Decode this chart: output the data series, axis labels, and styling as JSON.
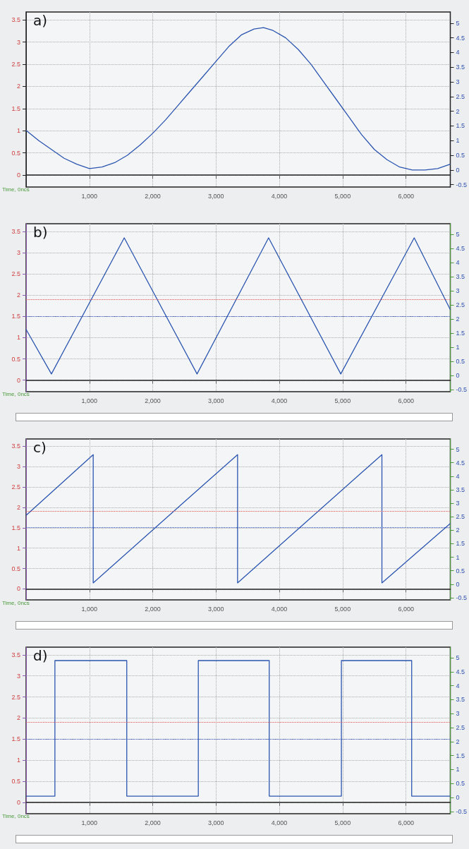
{
  "chart_data": [
    {
      "type": "line",
      "title": "a)",
      "xlabel": "Time, 0ncs",
      "xlim": [
        0,
        6700
      ],
      "xticks": [
        {
          "value": 1000,
          "label": "1,000"
        },
        {
          "value": 2000,
          "label": "2,000"
        },
        {
          "value": 3000,
          "label": "3,000"
        },
        {
          "value": 4000,
          "label": "4,000"
        },
        {
          "value": 5000,
          "label": "5,000"
        },
        {
          "value": 6000,
          "label": "6,000"
        }
      ],
      "ylim": [
        -0.27,
        3.68
      ],
      "yticks": [
        0,
        0.5,
        1,
        1.5,
        2,
        2.5,
        3,
        3.5
      ],
      "y2lim": [
        -0.58,
        5.38
      ],
      "y2ticks": [
        -0.5,
        0,
        0.5,
        1,
        1.5,
        2,
        2.5,
        3,
        3.5,
        4,
        4.5,
        5
      ],
      "grid": true,
      "x": [
        0,
        200,
        400,
        600,
        800,
        1000,
        1200,
        1400,
        1600,
        1800,
        2000,
        2200,
        2400,
        2600,
        2800,
        3000,
        3200,
        3400,
        3600,
        3750,
        3900,
        4100,
        4300,
        4500,
        4700,
        4900,
        5100,
        5300,
        5500,
        5700,
        5900,
        6100,
        6300,
        6500,
        6700
      ],
      "series": [
        {
          "color": "#2b55b0",
          "axis": "y2",
          "values": [
            1.35,
            1.0,
            0.7,
            0.4,
            0.2,
            0.05,
            0.1,
            0.25,
            0.5,
            0.85,
            1.25,
            1.7,
            2.2,
            2.7,
            3.2,
            3.7,
            4.2,
            4.6,
            4.8,
            4.85,
            4.75,
            4.5,
            4.1,
            3.6,
            3.0,
            2.4,
            1.8,
            1.2,
            0.7,
            0.35,
            0.1,
            0.0,
            0.0,
            0.05,
            0.2
          ]
        }
      ]
    },
    {
      "type": "line",
      "title": "b)",
      "xlabel": "Time, 0ncs",
      "xlim": [
        0,
        6700
      ],
      "xticks": [
        {
          "value": 1000,
          "label": "1,000"
        },
        {
          "value": 2000,
          "label": "2,000"
        },
        {
          "value": 3000,
          "label": "3,000"
        },
        {
          "value": 4000,
          "label": "4,000"
        },
        {
          "value": 5000,
          "label": "5,000"
        },
        {
          "value": 6000,
          "label": "6,000"
        }
      ],
      "ylim": [
        -0.27,
        3.68
      ],
      "yticks": [
        0,
        0.5,
        1,
        1.5,
        2,
        2.5,
        3,
        3.5
      ],
      "y2lim": [
        -0.58,
        5.38
      ],
      "y2ticks": [
        -0.5,
        0,
        0.5,
        1,
        1.5,
        2,
        2.5,
        3,
        3.5,
        4,
        4.5,
        5
      ],
      "grid": true,
      "ref_lines": [
        {
          "axis": "y",
          "value": 1.9,
          "color": "#e05050",
          "line_style": "dotted"
        },
        {
          "axis": "y2",
          "value": 2.1,
          "color": "#3050c0",
          "line_style": "dotted"
        }
      ],
      "x": [
        0,
        400,
        1550,
        2700,
        3830,
        4970,
        6130,
        6700
      ],
      "series": [
        {
          "color": "#2b55b0",
          "axis": "y2",
          "values": [
            1.63,
            0.05,
            4.88,
            0.05,
            4.88,
            0.05,
            4.88,
            2.33
          ]
        }
      ]
    },
    {
      "type": "line",
      "title": "c)",
      "xlabel": "Time, 0ncs",
      "xlim": [
        0,
        6700
      ],
      "xticks": [
        {
          "value": 1000,
          "label": "1,000"
        },
        {
          "value": 2000,
          "label": "2,000"
        },
        {
          "value": 3000,
          "label": "3,000"
        },
        {
          "value": 4000,
          "label": "4,000"
        },
        {
          "value": 5000,
          "label": "5,000"
        },
        {
          "value": 6000,
          "label": "6,000"
        }
      ],
      "ylim": [
        -0.27,
        3.68
      ],
      "yticks": [
        0,
        0.5,
        1,
        1.5,
        2,
        2.5,
        3,
        3.5
      ],
      "y2lim": [
        -0.58,
        5.38
      ],
      "y2ticks": [
        -0.5,
        0,
        0.5,
        1,
        1.5,
        2,
        2.5,
        3,
        3.5,
        4,
        4.5,
        5
      ],
      "grid": true,
      "ref_lines": [
        {
          "axis": "y",
          "value": 1.9,
          "color": "#e05050",
          "line_style": "dotted"
        },
        {
          "axis": "y2",
          "value": 2.1,
          "color": "#3050c0",
          "line_style": "dotted"
        }
      ],
      "x": [
        0,
        1060,
        1060,
        3340,
        3340,
        5620,
        5620,
        6700
      ],
      "series": [
        {
          "color": "#2b55b0",
          "axis": "y2",
          "values": [
            2.55,
            4.8,
            0.05,
            4.8,
            0.05,
            4.8,
            0.05,
            2.25
          ]
        }
      ]
    },
    {
      "type": "line",
      "title": "d)",
      "xlabel": "Time, 0ncs",
      "xlim": [
        0,
        6700
      ],
      "xticks": [
        {
          "value": 1000,
          "label": "1,000"
        },
        {
          "value": 2000,
          "label": "2,000"
        },
        {
          "value": 3000,
          "label": "3,000"
        },
        {
          "value": 4000,
          "label": "4,000"
        },
        {
          "value": 5000,
          "label": "5,000"
        },
        {
          "value": 6000,
          "label": "6,000"
        }
      ],
      "ylim": [
        -0.27,
        3.68
      ],
      "yticks": [
        0,
        0.5,
        1,
        1.5,
        2,
        2.5,
        3,
        3.5
      ],
      "y2lim": [
        -0.58,
        5.38
      ],
      "y2ticks": [
        -0.5,
        0,
        0.5,
        1,
        1.5,
        2,
        2.5,
        3,
        3.5,
        4,
        4.5,
        5
      ],
      "grid": true,
      "ref_lines": [
        {
          "axis": "y",
          "value": 1.9,
          "color": "#e05050",
          "line_style": "dotted"
        },
        {
          "axis": "y2",
          "value": 2.1,
          "color": "#3050c0",
          "line_style": "dotted"
        }
      ],
      "x": [
        0,
        455,
        455,
        1590,
        1590,
        2720,
        2720,
        3840,
        3840,
        4980,
        4980,
        6090,
        6090,
        6700
      ],
      "series": [
        {
          "color": "#2b55b0",
          "axis": "y2",
          "values": [
            0.05,
            0.05,
            4.9,
            4.9,
            0.05,
            0.05,
            4.9,
            4.9,
            0.05,
            0.05,
            4.9,
            4.9,
            0.05,
            0.05
          ]
        }
      ]
    }
  ]
}
